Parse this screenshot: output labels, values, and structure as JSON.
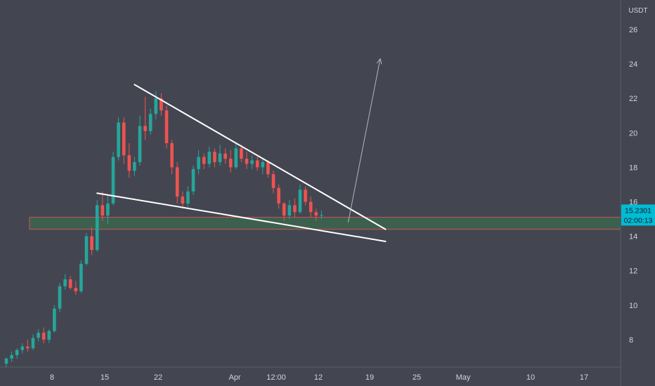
{
  "currency_label": "USDT",
  "last_price": {
    "value": 15.2301,
    "label": "15.2301",
    "countdown": "02:00:13"
  },
  "colors": {
    "background": "#434651",
    "up": "#26a69a",
    "down": "#ef5350",
    "zone_fill": "#3b6a4e",
    "zone_border": "#ef5350",
    "trendline": "#ffffff",
    "projection_arrow": "#b2b5be",
    "price_tag": "#00bcd4",
    "axis_text": "#d1d4dc"
  },
  "chart_data": {
    "type": "candlestick",
    "y_axis": {
      "label": "USDT",
      "ticks": [
        8,
        10,
        12,
        14,
        16,
        18,
        20,
        22,
        24,
        26
      ],
      "range": [
        6.3,
        27.5
      ]
    },
    "x_axis": {
      "ticks": [
        "8",
        "15",
        "22",
        "Apr",
        "12:00",
        "12",
        "19",
        "25",
        "May",
        "10",
        "17"
      ]
    },
    "support_zone": {
      "low": 14.4,
      "high": 15.1
    },
    "trendlines": [
      {
        "name": "upper",
        "from": {
          "bar": 24,
          "price": 22.8
        },
        "to": {
          "bar": 71,
          "price": 14.4
        }
      },
      {
        "name": "lower",
        "from": {
          "bar": 17,
          "price": 16.5
        },
        "to": {
          "bar": 71,
          "price": 13.7
        }
      }
    ],
    "projection_arrow": {
      "from": {
        "bar": 64,
        "price": 14.8
      },
      "to": {
        "bar": 70,
        "price": 24.3
      }
    },
    "candles": [
      {
        "o": 6.6,
        "h": 6.95,
        "l": 6.4,
        "c": 6.9
      },
      {
        "o": 6.9,
        "h": 7.3,
        "l": 6.7,
        "c": 7.1
      },
      {
        "o": 7.1,
        "h": 7.5,
        "l": 6.9,
        "c": 7.4
      },
      {
        "o": 7.4,
        "h": 7.8,
        "l": 7.2,
        "c": 7.6
      },
      {
        "o": 7.6,
        "h": 8.0,
        "l": 7.3,
        "c": 7.5
      },
      {
        "o": 7.5,
        "h": 8.3,
        "l": 7.4,
        "c": 8.1
      },
      {
        "o": 8.1,
        "h": 8.6,
        "l": 7.9,
        "c": 8.4
      },
      {
        "o": 8.4,
        "h": 8.7,
        "l": 7.8,
        "c": 8.0
      },
      {
        "o": 8.0,
        "h": 8.6,
        "l": 7.8,
        "c": 8.5
      },
      {
        "o": 8.5,
        "h": 10.0,
        "l": 8.4,
        "c": 9.8
      },
      {
        "o": 9.8,
        "h": 11.3,
        "l": 9.6,
        "c": 11.1
      },
      {
        "o": 11.1,
        "h": 11.8,
        "l": 10.9,
        "c": 11.5
      },
      {
        "o": 11.5,
        "h": 11.7,
        "l": 10.9,
        "c": 11.0
      },
      {
        "o": 11.0,
        "h": 11.4,
        "l": 10.6,
        "c": 10.8
      },
      {
        "o": 10.8,
        "h": 12.6,
        "l": 10.7,
        "c": 12.4
      },
      {
        "o": 12.4,
        "h": 14.2,
        "l": 12.3,
        "c": 14.0
      },
      {
        "o": 14.0,
        "h": 14.5,
        "l": 12.9,
        "c": 13.2
      },
      {
        "o": 13.2,
        "h": 16.1,
        "l": 13.1,
        "c": 15.8
      },
      {
        "o": 15.8,
        "h": 16.6,
        "l": 14.9,
        "c": 15.2
      },
      {
        "o": 15.2,
        "h": 16.4,
        "l": 14.7,
        "c": 15.9
      },
      {
        "o": 15.9,
        "h": 18.9,
        "l": 15.8,
        "c": 18.6
      },
      {
        "o": 18.6,
        "h": 20.9,
        "l": 18.4,
        "c": 20.6
      },
      {
        "o": 20.6,
        "h": 20.9,
        "l": 18.2,
        "c": 18.7
      },
      {
        "o": 18.7,
        "h": 19.4,
        "l": 17.4,
        "c": 17.8
      },
      {
        "o": 17.8,
        "h": 18.6,
        "l": 17.5,
        "c": 18.3
      },
      {
        "o": 18.3,
        "h": 21.0,
        "l": 18.1,
        "c": 20.4
      },
      {
        "o": 20.4,
        "h": 22.1,
        "l": 19.6,
        "c": 20.1
      },
      {
        "o": 20.1,
        "h": 21.4,
        "l": 19.9,
        "c": 21.1
      },
      {
        "o": 21.1,
        "h": 22.4,
        "l": 20.8,
        "c": 22.0
      },
      {
        "o": 22.0,
        "h": 22.3,
        "l": 21.0,
        "c": 21.3
      },
      {
        "o": 21.3,
        "h": 21.6,
        "l": 19.1,
        "c": 19.4
      },
      {
        "o": 19.4,
        "h": 19.6,
        "l": 17.6,
        "c": 18.0
      },
      {
        "o": 18.0,
        "h": 18.3,
        "l": 15.9,
        "c": 16.3
      },
      {
        "o": 16.3,
        "h": 16.6,
        "l": 15.6,
        "c": 15.9
      },
      {
        "o": 15.9,
        "h": 16.9,
        "l": 15.7,
        "c": 16.6
      },
      {
        "o": 16.6,
        "h": 18.1,
        "l": 16.4,
        "c": 17.9
      },
      {
        "o": 17.9,
        "h": 19.0,
        "l": 17.6,
        "c": 18.6
      },
      {
        "o": 18.6,
        "h": 18.8,
        "l": 17.9,
        "c": 18.2
      },
      {
        "o": 18.2,
        "h": 19.2,
        "l": 18.0,
        "c": 18.9
      },
      {
        "o": 18.9,
        "h": 19.1,
        "l": 18.0,
        "c": 18.3
      },
      {
        "o": 18.3,
        "h": 19.3,
        "l": 18.1,
        "c": 18.8
      },
      {
        "o": 18.8,
        "h": 19.1,
        "l": 18.2,
        "c": 18.5
      },
      {
        "o": 18.5,
        "h": 19.0,
        "l": 17.7,
        "c": 18.0
      },
      {
        "o": 18.0,
        "h": 19.4,
        "l": 17.9,
        "c": 19.1
      },
      {
        "o": 19.1,
        "h": 19.3,
        "l": 18.3,
        "c": 18.5
      },
      {
        "o": 18.5,
        "h": 18.9,
        "l": 17.9,
        "c": 18.2
      },
      {
        "o": 18.2,
        "h": 18.7,
        "l": 17.9,
        "c": 18.4
      },
      {
        "o": 18.4,
        "h": 18.6,
        "l": 17.8,
        "c": 18.0
      },
      {
        "o": 18.0,
        "h": 18.5,
        "l": 17.6,
        "c": 18.3
      },
      {
        "o": 18.3,
        "h": 18.4,
        "l": 17.4,
        "c": 17.6
      },
      {
        "o": 17.6,
        "h": 17.8,
        "l": 16.5,
        "c": 16.8
      },
      {
        "o": 16.8,
        "h": 17.0,
        "l": 15.6,
        "c": 15.9
      },
      {
        "o": 15.9,
        "h": 16.0,
        "l": 14.9,
        "c": 15.2
      },
      {
        "o": 15.2,
        "h": 16.1,
        "l": 15.0,
        "c": 15.8
      },
      {
        "o": 15.8,
        "h": 16.2,
        "l": 15.1,
        "c": 15.4
      },
      {
        "o": 15.4,
        "h": 17.0,
        "l": 15.3,
        "c": 16.7
      },
      {
        "o": 16.7,
        "h": 16.9,
        "l": 15.8,
        "c": 16.0
      },
      {
        "o": 16.0,
        "h": 16.3,
        "l": 15.1,
        "c": 15.4
      },
      {
        "o": 15.4,
        "h": 15.6,
        "l": 14.9,
        "c": 15.2
      },
      {
        "o": 15.2,
        "h": 15.5,
        "l": 15.0,
        "c": 15.23
      }
    ]
  }
}
